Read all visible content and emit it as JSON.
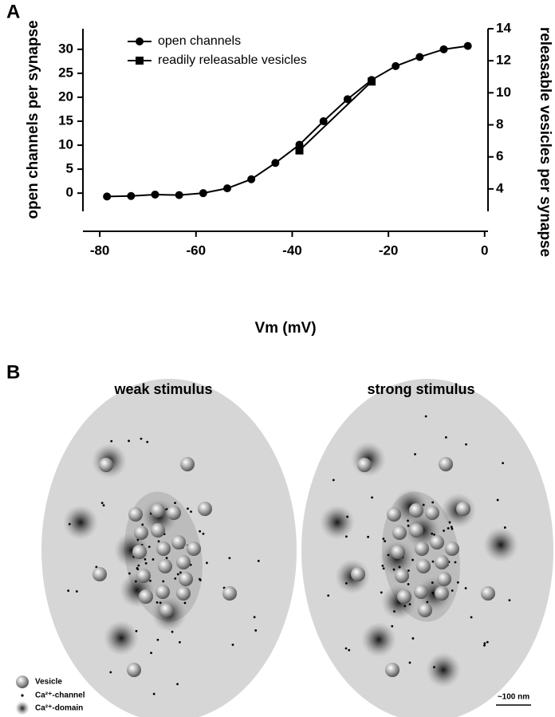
{
  "chart_data": {
    "type": "line",
    "panel_label": "A",
    "x_label": "Vm (mV)",
    "y_label": "open channels per synapse",
    "y2_label": "releasable vesicles per synapse",
    "xlim": [
      -83.5,
      0.7
    ],
    "xticks": [
      -80,
      -60,
      -40,
      -20,
      0
    ],
    "ylim": [
      -3.8,
      34.3
    ],
    "yticks": [
      0,
      5,
      10,
      15,
      20,
      25,
      30
    ],
    "y2lim": [
      2.6,
      14
    ],
    "y2ticks": [
      4,
      6,
      8,
      10,
      12,
      14
    ],
    "legend": "upper left",
    "series": [
      {
        "name": "open channels",
        "color": "#000000",
        "marker": "circle",
        "x": [
          -78.5,
          -73.5,
          -68.5,
          -63.5,
          -58.5,
          -53.5,
          -48.5,
          -43.5,
          -38.5,
          -33.5,
          -28.5,
          -23.5,
          -18.5,
          -13.5,
          -8.5,
          -3.5
        ],
        "values": [
          -0.7,
          -0.6,
          -0.3,
          -0.4,
          0,
          1,
          2.9,
          6.3,
          10.1,
          15,
          19.6,
          23.6,
          26.5,
          28.4,
          30,
          30.7
        ]
      },
      {
        "name": "readily releasable vesicles",
        "color": "#000000",
        "marker": "square",
        "axis": "y2",
        "x": [
          -38.5,
          -23.5
        ],
        "values": [
          6.4,
          10.7
        ]
      }
    ]
  },
  "diagram": {
    "panel_label": "B",
    "panels": [
      {
        "title": "weak stimulus"
      },
      {
        "title": "strong stimulus"
      }
    ],
    "legend": [
      "Vesicle",
      "Ca²⁺-channel",
      "Ca²⁺-domain"
    ],
    "scale_bar": "~100 nm"
  }
}
